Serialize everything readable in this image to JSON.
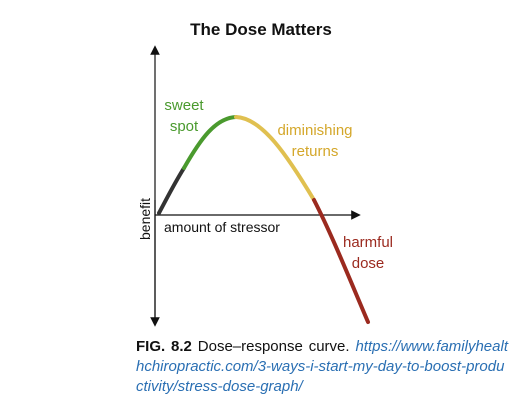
{
  "figure": {
    "title": "The Dose Matters",
    "y_axis_label": "benefit",
    "x_axis_label": "amount of stressor",
    "regions": [
      {
        "label_lines": [
          "sweet",
          "spot"
        ],
        "color": "#4a9a2e"
      },
      {
        "label_lines": [
          "diminishing",
          "returns"
        ],
        "color": "#d4a72a"
      },
      {
        "label_lines": [
          "harmful",
          "dose"
        ],
        "color": "#9b2a1f"
      }
    ],
    "curve_colors": {
      "rise": "#333333",
      "sweet_spot": "#4a9a2e",
      "diminishing": "#e0c050",
      "harmful": "#9b2a1f"
    }
  },
  "caption": {
    "fig_label": "FIG. 8.2",
    "text": "Dose–response curve.",
    "url": "https://www.familyhealthchiropractic.com/3-ways-i-start-my-day-to-boost-productivity/stress-dose-graph/"
  }
}
